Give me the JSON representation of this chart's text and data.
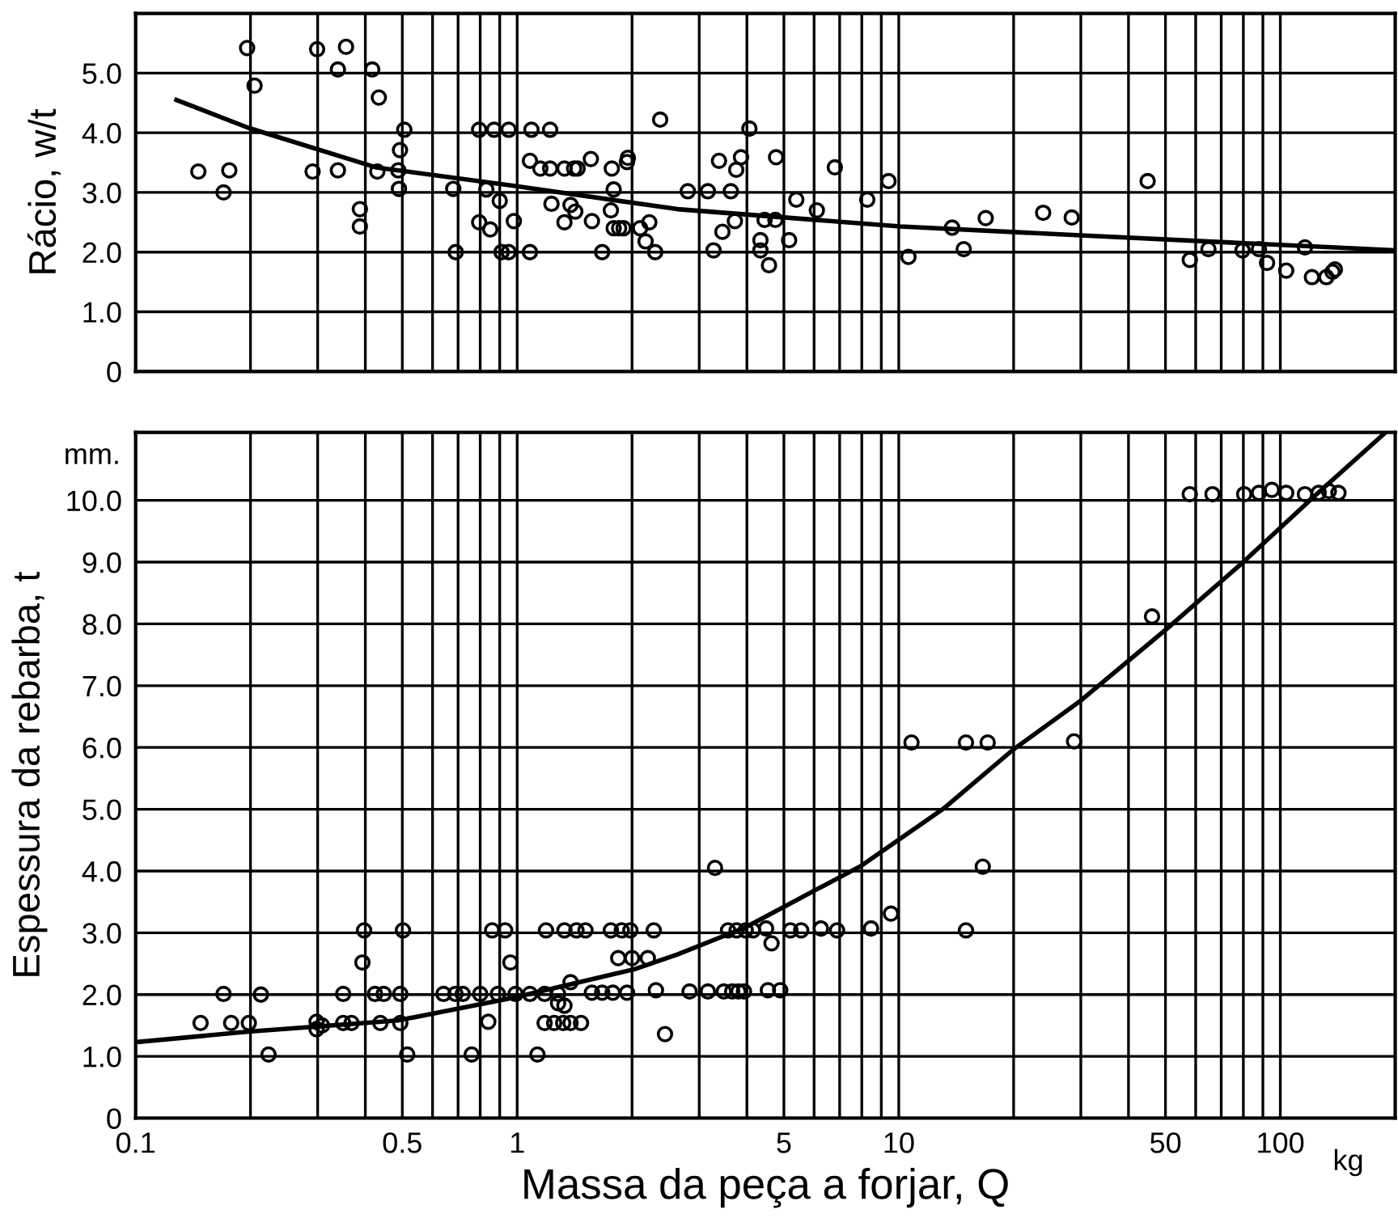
{
  "chart_data": [
    {
      "type": "scatter",
      "ylabel": "Rácio, w/t",
      "xlim": [
        0.1,
        200
      ],
      "ylim": [
        0,
        6
      ],
      "log": "x",
      "grid": true,
      "tick_labels": "y",
      "xticks": [
        {
          "value": 0.1,
          "label": null
        },
        {
          "value": 0.2,
          "label": null
        },
        {
          "value": 0.3,
          "label": null
        },
        {
          "value": 0.4,
          "label": null
        },
        {
          "value": 0.5,
          "label": null
        },
        {
          "value": 0.6,
          "label": null
        },
        {
          "value": 0.7,
          "label": null
        },
        {
          "value": 0.8,
          "label": null
        },
        {
          "value": 0.9,
          "label": null
        },
        {
          "value": 1,
          "label": null
        },
        {
          "value": 2,
          "label": null
        },
        {
          "value": 3,
          "label": null
        },
        {
          "value": 4,
          "label": null
        },
        {
          "value": 5,
          "label": null
        },
        {
          "value": 6,
          "label": null
        },
        {
          "value": 7,
          "label": null
        },
        {
          "value": 8,
          "label": null
        },
        {
          "value": 9,
          "label": null
        },
        {
          "value": 10,
          "label": null
        },
        {
          "value": 20,
          "label": null
        },
        {
          "value": 30,
          "label": null
        },
        {
          "value": 40,
          "label": null
        },
        {
          "value": 50,
          "label": null
        },
        {
          "value": 60,
          "label": null
        },
        {
          "value": 70,
          "label": null
        },
        {
          "value": 80,
          "label": null
        },
        {
          "value": 90,
          "label": null
        },
        {
          "value": 100,
          "label": null
        }
      ],
      "yticks": [
        {
          "value": 0,
          "label": "0"
        },
        {
          "value": 1,
          "label": "1.0"
        },
        {
          "value": 2,
          "label": "2.0"
        },
        {
          "value": 3,
          "label": "3.0"
        },
        {
          "value": 4,
          "label": "4.0"
        },
        {
          "value": 5,
          "label": "5.0"
        }
      ],
      "series": [
        {
          "marker": "circle",
          "color": "#000000",
          "x": [
            0.146,
            0.17,
            0.176,
            0.196,
            0.205,
            0.291,
            0.299,
            0.339,
            0.339,
            0.356,
            0.387,
            0.387,
            0.417,
            0.43,
            0.434,
            0.488,
            0.49,
            0.493,
            0.506,
            0.68,
            0.69,
            0.795,
            0.795,
            0.83,
            0.85,
            0.87,
            0.9,
            0.91,
            0.95,
            0.95,
            0.98,
            1.08,
            1.09,
            1.08,
            1.15,
            1.22,
            1.22,
            1.23,
            1.33,
            1.33,
            1.38,
            1.41,
            1.42,
            1.44,
            1.56,
            1.57,
            1.67,
            1.76,
            1.77,
            1.79,
            1.79,
            1.85,
            1.9,
            1.94,
            1.95,
            2.1,
            2.17,
            2.22,
            2.3,
            2.37,
            2.8,
            3.16,
            3.27,
            3.38,
            3.45,
            3.63,
            3.72,
            3.75,
            3.86,
            4.06,
            4.34,
            4.34,
            4.45,
            4.57,
            4.75,
            4.77,
            5.16,
            5.39,
            6.1,
            6.8,
            8.27,
            9.4,
            10.6,
            13.8,
            14.8,
            16.9,
            23.9,
            28.4,
            44.9,
            57.9,
            64.8,
            79.6,
            87.9,
            92.3,
            103.6,
            116,
            121,
            132,
            137,
            139
          ],
          "values": [
            3.35,
            3.0,
            3.37,
            5.42,
            4.79,
            3.35,
            5.4,
            3.37,
            5.06,
            5.44,
            2.72,
            2.43,
            5.06,
            3.35,
            4.59,
            3.37,
            3.06,
            3.71,
            4.05,
            3.06,
            2.0,
            4.05,
            2.5,
            3.05,
            2.38,
            4.05,
            2.86,
            2.0,
            4.05,
            2.0,
            2.52,
            2.0,
            4.05,
            3.53,
            3.4,
            4.05,
            3.4,
            2.81,
            2.5,
            3.4,
            2.79,
            3.4,
            2.68,
            3.4,
            3.56,
            2.52,
            2.0,
            2.7,
            3.4,
            3.05,
            2.4,
            2.4,
            2.4,
            3.51,
            3.58,
            2.4,
            2.18,
            2.5,
            2.0,
            4.22,
            3.02,
            3.02,
            2.03,
            3.53,
            2.34,
            3.02,
            2.52,
            3.38,
            3.59,
            4.07,
            2.2,
            2.03,
            2.54,
            1.78,
            2.54,
            3.59,
            2.2,
            2.88,
            2.7,
            3.42,
            2.88,
            3.19,
            1.92,
            2.41,
            2.05,
            2.57,
            2.66,
            2.58,
            3.19,
            1.87,
            2.05,
            2.03,
            2.05,
            1.82,
            1.69,
            2.08,
            1.58,
            1.58,
            1.67,
            1.71
          ]
        },
        {
          "type": "line",
          "color": "#000000",
          "x": [
            0.128,
            0.198,
            0.426,
            0.98,
            2.63,
            10.1,
            30,
            200
          ],
          "values": [
            4.55,
            4.08,
            3.42,
            3.11,
            2.72,
            2.43,
            2.28,
            2.03
          ]
        }
      ]
    },
    {
      "type": "scatter",
      "ylabel": "Espessura da rebarba, t",
      "xlabel": "Massa da peça a forjar, Q",
      "xlim": [
        0.1,
        200
      ],
      "ylim": [
        0,
        11.1
      ],
      "log": "x",
      "grid": true,
      "annotations": [
        "mm.",
        "kg"
      ],
      "xticks": [
        {
          "value": 0.1,
          "label": "0.1"
        },
        {
          "value": 0.2,
          "label": null
        },
        {
          "value": 0.3,
          "label": null
        },
        {
          "value": 0.4,
          "label": null
        },
        {
          "value": 0.5,
          "label": "0.5"
        },
        {
          "value": 0.6,
          "label": null
        },
        {
          "value": 0.7,
          "label": null
        },
        {
          "value": 0.8,
          "label": null
        },
        {
          "value": 0.9,
          "label": null
        },
        {
          "value": 1,
          "label": "1"
        },
        {
          "value": 2,
          "label": null
        },
        {
          "value": 3,
          "label": null
        },
        {
          "value": 4,
          "label": null
        },
        {
          "value": 5,
          "label": "5"
        },
        {
          "value": 6,
          "label": null
        },
        {
          "value": 7,
          "label": null
        },
        {
          "value": 8,
          "label": null
        },
        {
          "value": 9,
          "label": null
        },
        {
          "value": 10,
          "label": "10"
        },
        {
          "value": 20,
          "label": null
        },
        {
          "value": 30,
          "label": null
        },
        {
          "value": 40,
          "label": null
        },
        {
          "value": 50,
          "label": "50"
        },
        {
          "value": 60,
          "label": null
        },
        {
          "value": 70,
          "label": null
        },
        {
          "value": 80,
          "label": null
        },
        {
          "value": 90,
          "label": null
        },
        {
          "value": 100,
          "label": "100"
        }
      ],
      "yticks": [
        {
          "value": 0,
          "label": "0"
        },
        {
          "value": 1,
          "label": "1.0"
        },
        {
          "value": 2,
          "label": "2.0"
        },
        {
          "value": 3,
          "label": "3.0"
        },
        {
          "value": 4,
          "label": "4.0"
        },
        {
          "value": 5,
          "label": "5.0"
        },
        {
          "value": 6,
          "label": "6.0"
        },
        {
          "value": 7,
          "label": "7.0"
        },
        {
          "value": 8,
          "label": "8.0"
        },
        {
          "value": 9,
          "label": "9.0"
        },
        {
          "value": 10,
          "label": "10.0"
        }
      ],
      "series": [
        {
          "marker": "circle",
          "color": "#000000",
          "x": [
            0.148,
            0.17,
            0.178,
            0.198,
            0.213,
            0.223,
            0.298,
            0.298,
            0.308,
            0.35,
            0.35,
            0.368,
            0.397,
            0.393,
            0.424,
            0.447,
            0.438,
            0.494,
            0.502,
            0.494,
            0.515,
            0.641,
            0.689,
            0.72,
            0.76,
            0.8,
            0.84,
            0.86,
            0.93,
            0.96,
            0.89,
            0.99,
            1.08,
            1.13,
            1.18,
            1.19,
            1.28,
            1.28,
            1.33,
            1.33,
            1.38,
            1.43,
            1.51,
            1.18,
            1.25,
            1.32,
            1.38,
            1.47,
            1.57,
            1.67,
            1.78,
            1.94,
            1.76,
            1.88,
            1.98,
            1.84,
            2.0,
            2.2,
            2.28,
            2.31,
            2.44,
            2.83,
            3.16,
            3.48,
            3.66,
            3.8,
            3.93,
            4.54,
            4.89,
            3.3,
            16.6,
            3.57,
            3.76,
            3.97,
            4.15,
            4.49,
            4.64,
            5.2,
            5.55,
            6.25,
            6.89,
            8.46,
            9.54,
            15.0,
            10.8,
            15.0,
            17.1,
            28.8,
            46.1,
            57.9,
            66.4,
            80.4,
            87.9,
            95,
            103.6,
            116,
            126,
            134,
            142
          ],
          "values": [
            1.54,
            2.01,
            1.54,
            1.54,
            2.0,
            1.03,
            1.56,
            1.44,
            1.5,
            2.01,
            1.54,
            1.54,
            3.04,
            2.52,
            2.01,
            2.01,
            1.54,
            2.01,
            3.04,
            1.54,
            1.03,
            2.01,
            2.01,
            2.01,
            1.03,
            2.01,
            1.56,
            3.04,
            3.04,
            2.52,
            2.01,
            2.01,
            2.01,
            1.03,
            2.01,
            3.04,
            2.01,
            1.86,
            3.04,
            1.82,
            2.2,
            3.04,
            3.04,
            1.54,
            1.54,
            1.54,
            1.54,
            1.54,
            2.03,
            2.03,
            2.03,
            2.03,
            3.04,
            3.04,
            3.04,
            2.59,
            2.59,
            2.59,
            3.04,
            2.07,
            1.36,
            2.05,
            2.05,
            2.05,
            2.05,
            2.05,
            2.05,
            2.07,
            2.07,
            4.05,
            4.07,
            3.04,
            3.04,
            3.04,
            3.04,
            3.07,
            2.83,
            3.04,
            3.04,
            3.07,
            3.04,
            3.07,
            3.31,
            3.04,
            6.08,
            6.08,
            6.08,
            6.1,
            8.12,
            10.1,
            10.1,
            10.1,
            10.12,
            10.17,
            10.12,
            10.1,
            10.12,
            10.15,
            10.12
          ]
        },
        {
          "type": "line",
          "color": "#000000",
          "x": [
            0.1,
            0.198,
            0.486,
            0.98,
            2.03,
            2.63,
            3.97,
            8.0,
            13.1,
            19.9,
            30,
            50.8,
            79.6,
            124,
            188
          ],
          "values": [
            1.23,
            1.4,
            1.58,
            1.95,
            2.41,
            2.65,
            3.09,
            4.09,
            5.01,
            5.96,
            6.76,
            7.94,
            8.99,
            10.09,
            11.09
          ]
        }
      ]
    }
  ]
}
